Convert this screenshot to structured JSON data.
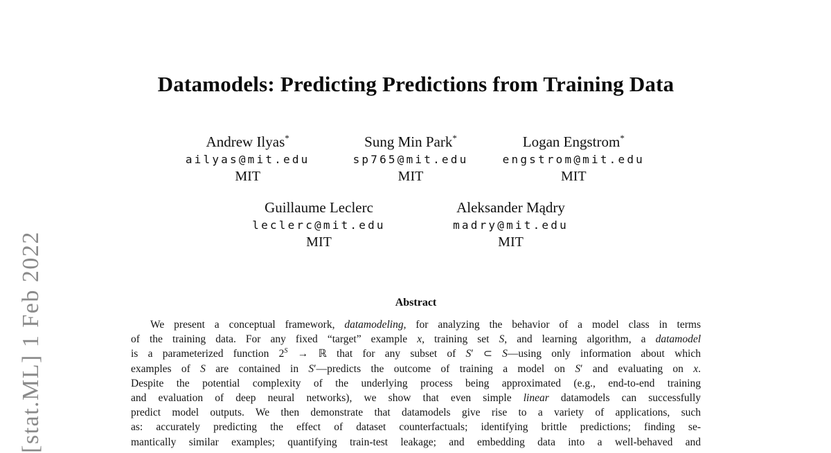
{
  "colors": {
    "background": "#ffffff",
    "text": "#101010",
    "watermark_gray": "#8a8a8a"
  },
  "watermark": {
    "text": "[stat.ML] 1 Feb 2022"
  },
  "paper": {
    "title": "Datamodels: Predicting Predictions from Training Data",
    "authors_row1": [
      {
        "name": "Andrew Ilyas",
        "mark": "*",
        "email": "ailyas@mit.edu",
        "affiliation": "MIT"
      },
      {
        "name": "Sung Min Park",
        "mark": "*",
        "email": "sp765@mit.edu",
        "affiliation": "MIT"
      },
      {
        "name": "Logan Engstrom",
        "mark": "*",
        "email": "engstrom@mit.edu",
        "affiliation": "MIT"
      }
    ],
    "authors_row2": [
      {
        "name": "Guillaume Leclerc",
        "mark": "",
        "email": "leclerc@mit.edu",
        "affiliation": "MIT"
      },
      {
        "name": "Aleksander Mądry",
        "mark": "",
        "email": "madry@mit.edu",
        "affiliation": "MIT"
      }
    ],
    "abstract": {
      "heading": "Abstract",
      "lines": [
        [
          {
            "t": "We present a conceptual framework, "
          },
          {
            "t": "datamodeling",
            "s": "i"
          },
          {
            "t": ", for analyzing the behavior of a model class in terms"
          }
        ],
        [
          {
            "t": "of the training data. For any fixed “target” example "
          },
          {
            "t": "x",
            "s": "i"
          },
          {
            "t": ", training set "
          },
          {
            "t": "S",
            "s": "i"
          },
          {
            "t": ", and learning algorithm, a "
          },
          {
            "t": "datamodel",
            "s": "i"
          }
        ],
        [
          {
            "t": "is a parameterized function 2"
          },
          {
            "t": "S",
            "s": "sup i"
          },
          {
            "t": " → ℝ that for any subset of "
          },
          {
            "t": "S",
            "s": "i"
          },
          {
            "t": "′ ⊂ "
          },
          {
            "t": "S",
            "s": "i"
          },
          {
            "t": "—using only information about which"
          }
        ],
        [
          {
            "t": "examples of "
          },
          {
            "t": "S",
            "s": "i"
          },
          {
            "t": " are contained in "
          },
          {
            "t": "S",
            "s": "i"
          },
          {
            "t": "′—predicts the outcome of training a model on "
          },
          {
            "t": "S",
            "s": "i"
          },
          {
            "t": "′ and evaluating on "
          },
          {
            "t": "x",
            "s": "i"
          },
          {
            "t": "."
          }
        ],
        [
          {
            "t": "Despite the potential complexity of the underlying process being approximated (e.g., end-to-end training"
          }
        ],
        [
          {
            "t": "and evaluation of deep neural networks), we show that even simple "
          },
          {
            "t": "linear",
            "s": "i"
          },
          {
            "t": " datamodels can successfully"
          }
        ],
        [
          {
            "t": "predict model outputs. We then demonstrate that datamodels give rise to a variety of applications, such"
          }
        ],
        [
          {
            "t": "as: accurately predicting the effect of dataset counterfactuals; identifying brittle predictions; finding se-"
          }
        ],
        [
          {
            "t": "mantically similar examples; quantifying train-test leakage; and embedding data into a well-behaved and"
          }
        ]
      ]
    }
  }
}
